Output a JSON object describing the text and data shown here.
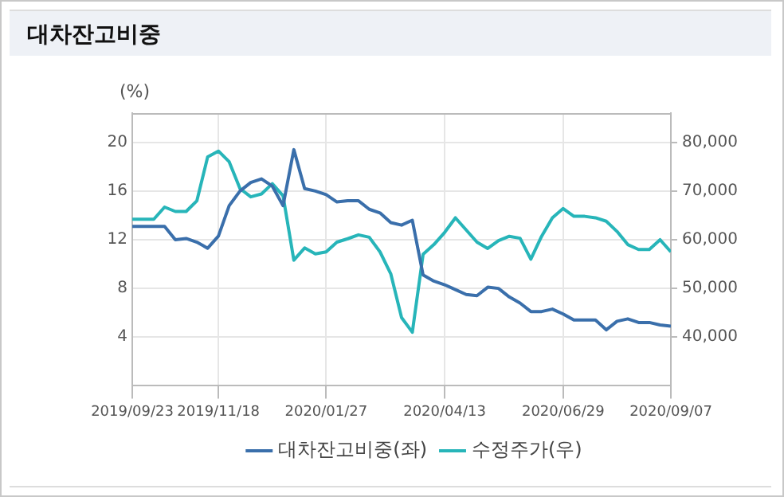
{
  "chart_data": {
    "type": "line",
    "title": "대차잔고비중",
    "ylabel": "(%)",
    "x": [
      "2019-09-23",
      "2019-09-30",
      "2019-10-07",
      "2019-10-14",
      "2019-10-21",
      "2019-10-28",
      "2019-11-04",
      "2019-11-11",
      "2019-11-18",
      "2019-11-25",
      "2019-12-02",
      "2019-12-09",
      "2019-12-16",
      "2019-12-23",
      "2019-12-30",
      "2020-01-06",
      "2020-01-13",
      "2020-01-20",
      "2020-01-27",
      "2020-02-03",
      "2020-02-10",
      "2020-02-17",
      "2020-02-24",
      "2020-03-02",
      "2020-03-09",
      "2020-03-16",
      "2020-03-23",
      "2020-03-30",
      "2020-04-06",
      "2020-04-13",
      "2020-04-20",
      "2020-04-27",
      "2020-05-04",
      "2020-05-11",
      "2020-05-18",
      "2020-05-25",
      "2020-06-01",
      "2020-06-08",
      "2020-06-15",
      "2020-06-22",
      "2020-06-29",
      "2020-07-06",
      "2020-07-13",
      "2020-07-20",
      "2020-07-27",
      "2020-08-03",
      "2020-08-10",
      "2020-08-17",
      "2020-08-24",
      "2020-08-31",
      "2020-09-07"
    ],
    "series": [
      {
        "name": "대차잔고비중(좌)",
        "color": "#3a6fab",
        "values": [
          13.1,
          13.1,
          13.1,
          13.1,
          12.0,
          12.1,
          11.8,
          11.3,
          12.3,
          14.8,
          16.0,
          16.7,
          17.0,
          16.4,
          14.8,
          19.4,
          16.2,
          16.0,
          15.7,
          15.1,
          15.2,
          15.2,
          14.5,
          14.2,
          13.4,
          13.2,
          13.6,
          9.1,
          8.6,
          8.3,
          7.9,
          7.5,
          7.4,
          8.1,
          8.0,
          7.3,
          6.8,
          6.1,
          6.1,
          6.3,
          5.9,
          5.4,
          5.4,
          5.4,
          4.6,
          5.3,
          5.5,
          5.2,
          5.2,
          5.0,
          4.9
        ]
      },
      {
        "name": "수정주가(우)",
        "color": "#27b5b9",
        "axis": "y2",
        "values": [
          64200,
          64200,
          64200,
          66700,
          65800,
          65800,
          68000,
          77000,
          78200,
          76000,
          70500,
          68800,
          69400,
          71500,
          69000,
          55800,
          58300,
          57100,
          57500,
          59500,
          60200,
          61000,
          60500,
          57500,
          53000,
          44000,
          41000,
          57000,
          59000,
          61500,
          64500,
          62000,
          59500,
          58200,
          59800,
          60700,
          60300,
          56000,
          60700,
          64500,
          66400,
          64800,
          64800,
          64500,
          63800,
          61700,
          59000,
          58000,
          58000,
          60000,
          57500
        ]
      }
    ],
    "xlim": [
      "2019-09-23",
      "2020-09-07"
    ],
    "xticks": [
      {
        "value": "2019-09-23",
        "label": "2019/09/23"
      },
      {
        "value": "2019-11-18",
        "label": "2019/11/18"
      },
      {
        "value": "2020-01-27",
        "label": "2020/01/27"
      },
      {
        "value": "2020-04-13",
        "label": "2020/04/13"
      },
      {
        "value": "2020-06-29",
        "label": "2020/06/29"
      },
      {
        "value": "2020-09-07",
        "label": "2020/09/07"
      }
    ],
    "ylim": [
      0,
      22.4
    ],
    "yticks": [
      4,
      8,
      12,
      16,
      20
    ],
    "y2lim": [
      30000,
      86000
    ],
    "y2ticks": [
      {
        "value": 40000,
        "label": "40,000"
      },
      {
        "value": 50000,
        "label": "50,000"
      },
      {
        "value": 60000,
        "label": "60,000"
      },
      {
        "value": 70000,
        "label": "70,000"
      },
      {
        "value": 80000,
        "label": "80,000"
      }
    ],
    "grid": true,
    "legend": "bottom",
    "marker": "none",
    "line_style": "solid"
  }
}
